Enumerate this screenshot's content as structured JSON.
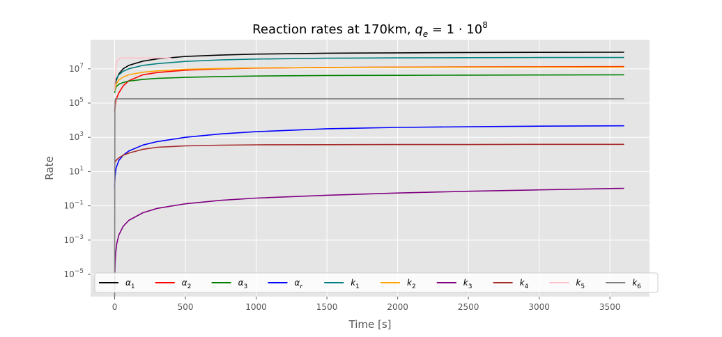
{
  "chart_data": {
    "type": "line",
    "title": "Reaction rates at 170km, q_e = 1 · 10^8",
    "title_parts": {
      "prefix": "Reaction rates at 170km, ",
      "var": "q",
      "sub": "e",
      "eq": " = 1 · 10",
      "sup": "8"
    },
    "xlabel": "Time [s]",
    "ylabel": "Rate",
    "xlim": [
      -170,
      3780
    ],
    "ylog": true,
    "ylim_log10": [
      -6.3,
      8.7
    ],
    "xticks": [
      0,
      500,
      1000,
      1500,
      2000,
      2500,
      3000,
      3500
    ],
    "yticks": [
      {
        "exp": -5,
        "base": "10",
        "sup": "−5"
      },
      {
        "exp": -3,
        "base": "10",
        "sup": "−3"
      },
      {
        "exp": -1,
        "base": "10",
        "sup": "−1"
      },
      {
        "exp": 1,
        "base": "10",
        "sup": "1"
      },
      {
        "exp": 3,
        "base": "10",
        "sup": "3"
      },
      {
        "exp": 5,
        "base": "10",
        "sup": "5"
      },
      {
        "exp": 7,
        "base": "10",
        "sup": "7"
      }
    ],
    "grid": true,
    "legend_placement": "lower-center",
    "background": "#e5e5e5",
    "series": [
      {
        "name": "α1",
        "symbol": "α",
        "sub": "1",
        "color": "#000000",
        "x": [
          0,
          3,
          10,
          30,
          60,
          100,
          200,
          300,
          500,
          750,
          1000,
          1500,
          2000,
          2500,
          3000,
          3600
        ],
        "y_log10": [
          5.8,
          6.0,
          6.3,
          6.7,
          7.0,
          7.2,
          7.45,
          7.58,
          7.72,
          7.8,
          7.86,
          7.91,
          7.93,
          7.95,
          7.96,
          7.97
        ]
      },
      {
        "name": "α2",
        "symbol": "α",
        "sub": "2",
        "color": "#ff0000",
        "x": [
          0,
          3,
          10,
          30,
          60,
          100,
          200,
          300,
          500,
          750,
          1000,
          1500,
          2000,
          2500,
          3000,
          3600
        ],
        "y_log10": [
          4.5,
          4.8,
          5.2,
          5.6,
          6.0,
          6.3,
          6.65,
          6.78,
          6.92,
          7.0,
          7.04,
          7.08,
          7.1,
          7.11,
          7.12,
          7.13
        ]
      },
      {
        "name": "α3",
        "symbol": "α",
        "sub": "3",
        "color": "#008000",
        "x": [
          0,
          3,
          10,
          30,
          60,
          100,
          200,
          300,
          500,
          750,
          1000,
          1500,
          2000,
          2500,
          3000,
          3600
        ],
        "y_log10": [
          5.6,
          5.75,
          5.95,
          6.1,
          6.2,
          6.28,
          6.38,
          6.44,
          6.5,
          6.55,
          6.58,
          6.61,
          6.62,
          6.63,
          6.64,
          6.65
        ]
      },
      {
        "name": "αr",
        "symbol": "α",
        "sub": "r",
        "color": "#0000ff",
        "x": [
          0,
          3,
          10,
          30,
          60,
          100,
          200,
          300,
          500,
          750,
          1000,
          1500,
          2000,
          2500,
          3000,
          3600
        ],
        "y_log10": [
          0.1,
          0.7,
          1.2,
          1.65,
          1.95,
          2.2,
          2.55,
          2.75,
          3.0,
          3.2,
          3.33,
          3.5,
          3.58,
          3.62,
          3.65,
          3.67
        ]
      },
      {
        "name": "k1",
        "symbol": "k",
        "sub": "1",
        "color": "#008080",
        "x": [
          0,
          3,
          10,
          30,
          60,
          100,
          200,
          300,
          500,
          750,
          1000,
          1500,
          2000,
          2500,
          3000,
          3600
        ],
        "y_log10": [
          6.0,
          6.2,
          6.4,
          6.65,
          6.85,
          7.0,
          7.2,
          7.3,
          7.43,
          7.52,
          7.57,
          7.62,
          7.64,
          7.65,
          7.66,
          7.66
        ]
      },
      {
        "name": "k2",
        "symbol": "k",
        "sub": "2",
        "color": "#ffa500",
        "x": [
          0,
          3,
          10,
          30,
          60,
          100,
          200,
          300,
          500,
          750,
          1000,
          1500,
          2000,
          2500,
          3000,
          3600
        ],
        "y_log10": [
          5.7,
          5.9,
          6.1,
          6.35,
          6.52,
          6.65,
          6.8,
          6.88,
          6.97,
          7.02,
          7.05,
          7.08,
          7.09,
          7.1,
          7.1,
          7.1
        ]
      },
      {
        "name": "k3",
        "symbol": "k",
        "sub": "3",
        "color": "#800080",
        "x": [
          0,
          1.5,
          3,
          8,
          15,
          30,
          60,
          100,
          200,
          300,
          500,
          750,
          1000,
          1500,
          2000,
          2500,
          3000,
          3600
        ],
        "y_log10": [
          -5.9,
          -5.0,
          -4.4,
          -3.7,
          -3.2,
          -2.7,
          -2.2,
          -1.85,
          -1.4,
          -1.15,
          -0.88,
          -0.68,
          -0.55,
          -0.38,
          -0.25,
          -0.15,
          -0.07,
          0.02
        ]
      },
      {
        "name": "k4",
        "symbol": "k",
        "sub": "4",
        "color": "#a52a2a",
        "x": [
          0,
          3,
          10,
          30,
          60,
          100,
          200,
          300,
          500,
          750,
          1000,
          1500,
          2000,
          2500,
          3000,
          3600
        ],
        "y_log10": [
          1.5,
          1.55,
          1.65,
          1.8,
          1.95,
          2.08,
          2.3,
          2.42,
          2.5,
          2.54,
          2.56,
          2.57,
          2.58,
          2.58,
          2.59,
          2.59
        ]
      },
      {
        "name": "k5",
        "symbol": "k",
        "sub": "5",
        "color": "#ffc0cb",
        "x": [
          0,
          3,
          8,
          15,
          25,
          40,
          60,
          100,
          200,
          400
        ],
        "y_log10": [
          5.7,
          6.4,
          7.0,
          7.4,
          7.55,
          7.62,
          7.63,
          7.63,
          7.63,
          7.63
        ]
      },
      {
        "name": "k6",
        "symbol": "k",
        "sub": "6",
        "color": "#808080",
        "x": [
          0,
          1,
          2,
          3,
          5,
          10,
          3600
        ],
        "y_log10": [
          -6.3,
          0.0,
          4.5,
          5.1,
          5.25,
          5.25,
          5.25
        ]
      }
    ]
  }
}
